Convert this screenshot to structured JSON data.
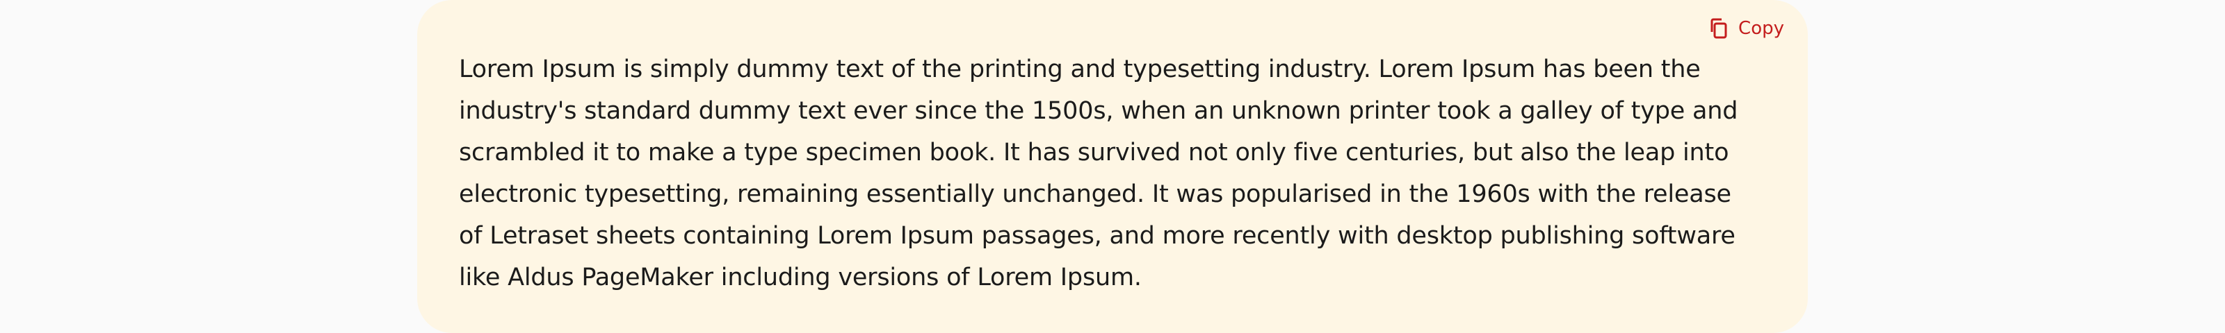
{
  "copy_button": {
    "label": "Copy",
    "icon": "copy-icon",
    "color": "#c41d1d"
  },
  "card": {
    "background": "#fef6e4",
    "text": "Lorem Ipsum is simply dummy text of the printing and typesetting industry. Lorem Ipsum has been the industry's standard dummy text ever since the 1500s, when an unknown printer took a galley of type and scrambled it to make a type specimen book. It has survived not only five centuries, but also the leap into electronic typesetting, remaining essentially unchanged. It was popularised in the 1960s with the release of Letraset sheets containing Lorem Ipsum passages, and more recently with desktop publishing software like Aldus PageMaker including versions of Lorem Ipsum."
  }
}
